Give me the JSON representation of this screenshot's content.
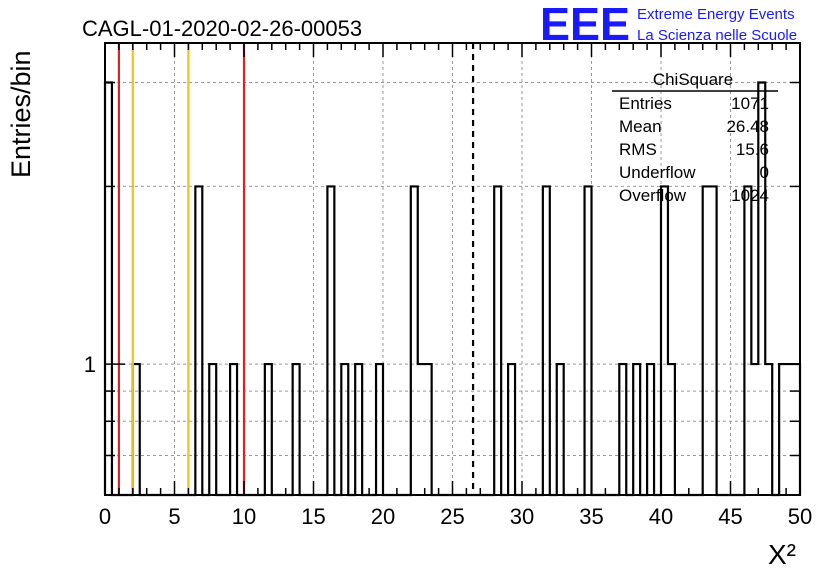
{
  "header": {
    "run_title": "CAGL-01-2020-02-26-00053",
    "logo_text": "EEE",
    "brand_line1": "Extreme Energy Events",
    "brand_line2": "La Scienza nelle Scuole",
    "brand_color": "#1a1aff"
  },
  "stats_box": {
    "title": "ChiSquare",
    "rows": [
      {
        "label": "Entries",
        "value": "1071"
      },
      {
        "label": "Mean",
        "value": "26.48"
      },
      {
        "label": "RMS",
        "value": "15.6"
      },
      {
        "label": "Underflow",
        "value": "0"
      },
      {
        "label": "Overflow",
        "value": "1024"
      }
    ]
  },
  "chart_data": {
    "type": "histogram",
    "title": "CAGL-01-2020-02-26-00053",
    "xlabel": "X²",
    "ylabel": "Entries/bin",
    "xlim": [
      0,
      50
    ],
    "ylim": [
      0.6,
      3.5
    ],
    "yscale": "log",
    "grid": true,
    "bin_width": 0.5,
    "x_ticks": [
      0,
      5,
      10,
      15,
      20,
      25,
      30,
      35,
      40,
      45,
      50
    ],
    "x_tick_labels": [
      "0",
      "5",
      "10",
      "15",
      "20",
      "25",
      "30",
      "35",
      "40",
      "45",
      "50"
    ],
    "y_tick_labels": [
      {
        "value": 1,
        "label": "1"
      }
    ],
    "bins": [
      {
        "x": 0.0,
        "count": 3
      },
      {
        "x": 2.0,
        "count": 1
      },
      {
        "x": 6.5,
        "count": 2
      },
      {
        "x": 7.5,
        "count": 1
      },
      {
        "x": 9.0,
        "count": 1
      },
      {
        "x": 11.5,
        "count": 1
      },
      {
        "x": 13.5,
        "count": 1
      },
      {
        "x": 16.0,
        "count": 2
      },
      {
        "x": 17.0,
        "count": 1
      },
      {
        "x": 18.0,
        "count": 1
      },
      {
        "x": 19.5,
        "count": 1
      },
      {
        "x": 22.0,
        "count": 2
      },
      {
        "x": 22.5,
        "count": 1
      },
      {
        "x": 23.0,
        "count": 1
      },
      {
        "x": 28.0,
        "count": 2
      },
      {
        "x": 29.0,
        "count": 1
      },
      {
        "x": 31.5,
        "count": 2
      },
      {
        "x": 32.5,
        "count": 1
      },
      {
        "x": 34.5,
        "count": 2
      },
      {
        "x": 37.0,
        "count": 1
      },
      {
        "x": 38.0,
        "count": 1
      },
      {
        "x": 39.0,
        "count": 1
      },
      {
        "x": 40.0,
        "count": 2
      },
      {
        "x": 40.5,
        "count": 1
      },
      {
        "x": 43.0,
        "count": 2
      },
      {
        "x": 43.5,
        "count": 2
      },
      {
        "x": 46.0,
        "count": 2
      },
      {
        "x": 46.5,
        "count": 1
      },
      {
        "x": 47.0,
        "count": 3
      },
      {
        "x": 47.5,
        "count": 1
      },
      {
        "x": 48.5,
        "count": 1
      },
      {
        "x": 49.0,
        "count": 1
      },
      {
        "x": 49.5,
        "count": 1
      }
    ],
    "reference_lines": [
      {
        "x": 1.0,
        "color": "#dd2222",
        "style": "solid"
      },
      {
        "x": 2.0,
        "color": "#f0c020",
        "style": "solid"
      },
      {
        "x": 6.0,
        "color": "#f0c020",
        "style": "solid"
      },
      {
        "x": 10.0,
        "color": "#dd2222",
        "style": "solid"
      },
      {
        "x": 26.48,
        "color": "#000000",
        "style": "dashed"
      }
    ]
  }
}
